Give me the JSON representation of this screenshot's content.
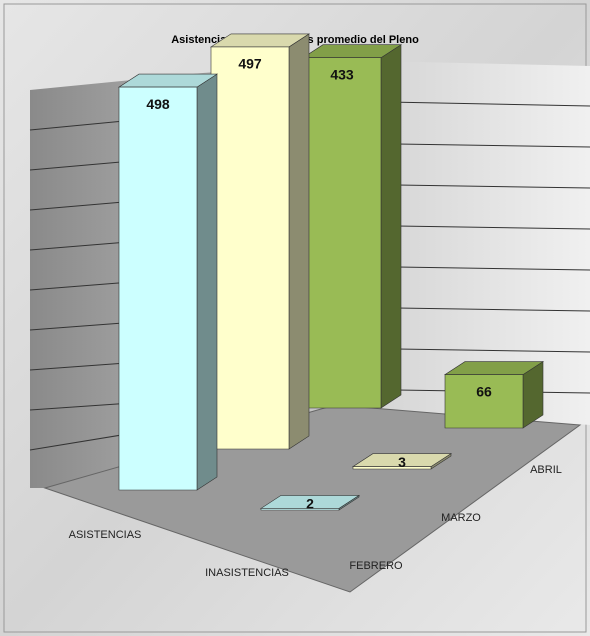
{
  "chart_data": {
    "type": "bar3d",
    "title": "Asistencias e Inasistencias promedio del Pleno",
    "categories": [
      "ASISTENCIAS",
      "INASISTENCIAS"
    ],
    "series": [
      {
        "name": "FEBRERO",
        "color": "#ccffff",
        "values": [
          498,
          2
        ]
      },
      {
        "name": "MARZO",
        "color": "#ffffcc",
        "values": [
          497,
          3
        ]
      },
      {
        "name": "ABRIL",
        "color": "#99bb55",
        "values": [
          433,
          66
        ]
      }
    ],
    "ylim": [
      0,
      550
    ]
  }
}
